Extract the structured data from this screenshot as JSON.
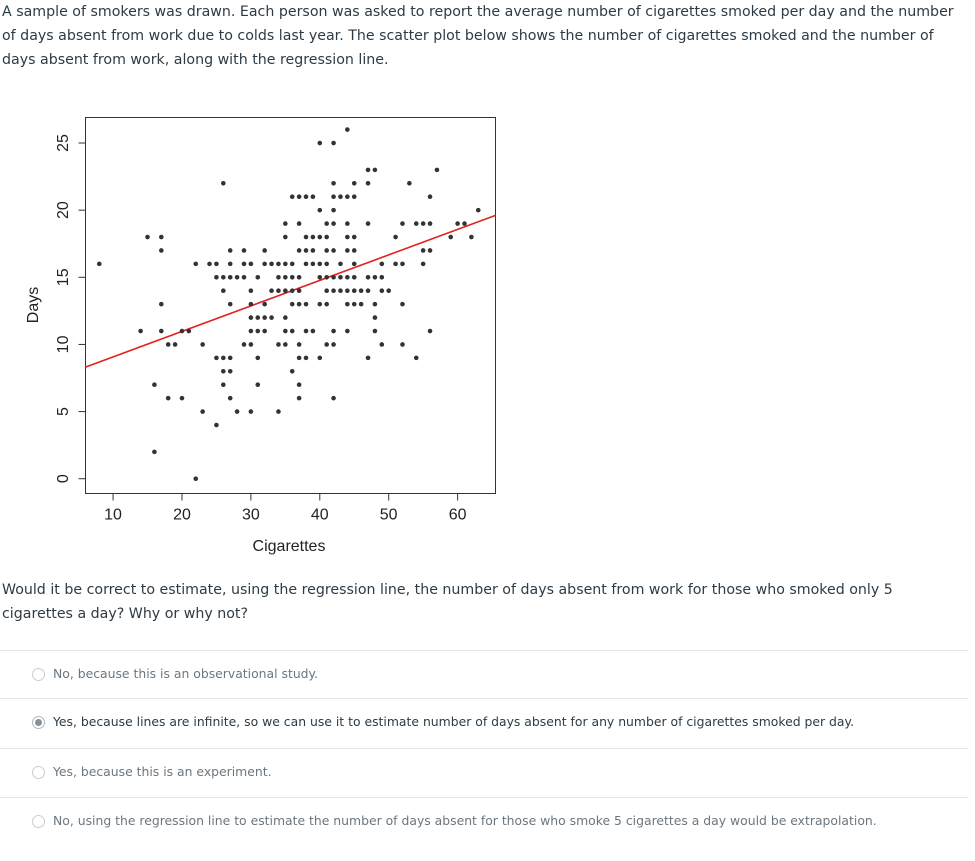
{
  "intro": "A sample of smokers was drawn. Each person was asked to report the average number of cigarettes smoked per day and the number of days absent from work due to colds last year. The scatter plot below shows the number of cigarettes smoked and the number of days absent from work, along with the regression line.",
  "question": "Would it be correct to estimate, using the regression line, the number of days absent from work for those who smoked only 5 cigarettes a day? Why or why not?",
  "options": [
    {
      "label": "No, because this is an observational study.",
      "selected": false
    },
    {
      "label": "Yes, because lines are infinite, so we can use it to estimate number of days absent for any number of cigarettes smoked per day.",
      "selected": true
    },
    {
      "label": "Yes, because this is an experiment.",
      "selected": false
    },
    {
      "label": "No, using the regression line to estimate the number of days absent for those who smoke 5 cigarettes a day would be extrapolation.",
      "selected": false
    }
  ],
  "chart_data": {
    "type": "scatter",
    "xlabel": "Cigarettes",
    "ylabel": "Days",
    "xticks": [
      "10",
      "20",
      "30",
      "40",
      "50",
      "60"
    ],
    "yticks": [
      "0",
      "5",
      "10",
      "15",
      "20",
      "25"
    ],
    "xlim": [
      6,
      65.5
    ],
    "ylim": [
      -1.1,
      26.9
    ],
    "grid": false,
    "point_color": "#333333",
    "line_color": "#e32222",
    "regression_line": {
      "intercept": 7.17,
      "slope": 0.19
    },
    "points_by_days": [
      {
        "y": 26,
        "x": [
          44
        ]
      },
      {
        "y": 25,
        "x": [
          40,
          42
        ]
      },
      {
        "y": 23,
        "x": [
          47,
          48,
          57
        ]
      },
      {
        "y": 22,
        "x": [
          26,
          42,
          45,
          47,
          53
        ]
      },
      {
        "y": 21,
        "x": [
          36,
          37,
          38,
          39,
          42,
          43,
          44,
          45,
          56
        ]
      },
      {
        "y": 20,
        "x": [
          40,
          42,
          63
        ]
      },
      {
        "y": 19,
        "x": [
          35,
          37,
          41,
          42,
          44,
          47,
          52,
          54,
          55,
          56,
          60,
          61
        ]
      },
      {
        "y": 18,
        "x": [
          15,
          17,
          35,
          38,
          39,
          40,
          41,
          44,
          45,
          51,
          59,
          62
        ]
      },
      {
        "y": 17,
        "x": [
          17,
          27,
          29,
          32,
          37,
          38,
          39,
          41,
          42,
          44,
          45,
          55,
          56
        ]
      },
      {
        "y": 16,
        "x": [
          8,
          22,
          24,
          25,
          27,
          29,
          30,
          32,
          33,
          34,
          35,
          36,
          38,
          39,
          40,
          41,
          43,
          45,
          49,
          51,
          52,
          55
        ]
      },
      {
        "y": 15,
        "x": [
          25,
          26,
          27,
          28,
          29,
          31,
          34,
          35,
          36,
          37,
          40,
          41,
          42,
          43,
          44,
          45,
          47,
          48,
          49
        ]
      },
      {
        "y": 14,
        "x": [
          26,
          30,
          33,
          34,
          35,
          36,
          37,
          41,
          42,
          43,
          44,
          45,
          46,
          47,
          49,
          50
        ]
      },
      {
        "y": 13,
        "x": [
          17,
          27,
          30,
          32,
          36,
          37,
          38,
          40,
          41,
          44,
          45,
          46,
          48,
          52
        ]
      },
      {
        "y": 12,
        "x": [
          30,
          31,
          32,
          33,
          35,
          48
        ]
      },
      {
        "y": 11,
        "x": [
          14,
          17,
          20,
          21,
          30,
          31,
          32,
          35,
          36,
          38,
          39,
          42,
          44,
          48,
          56
        ]
      },
      {
        "y": 10,
        "x": [
          18,
          19,
          23,
          29,
          30,
          34,
          35,
          37,
          41,
          42,
          49,
          52
        ]
      },
      {
        "y": 9,
        "x": [
          25,
          26,
          27,
          31,
          37,
          38,
          40,
          47,
          54
        ]
      },
      {
        "y": 8,
        "x": [
          26,
          27,
          36
        ]
      },
      {
        "y": 7,
        "x": [
          16,
          26,
          31,
          37
        ]
      },
      {
        "y": 6,
        "x": [
          18,
          20,
          27,
          37,
          42
        ]
      },
      {
        "y": 5,
        "x": [
          23,
          28,
          30,
          34
        ]
      },
      {
        "y": 4,
        "x": [
          25
        ]
      },
      {
        "y": 2,
        "x": [
          16
        ]
      },
      {
        "y": 0,
        "x": [
          22
        ]
      }
    ]
  }
}
